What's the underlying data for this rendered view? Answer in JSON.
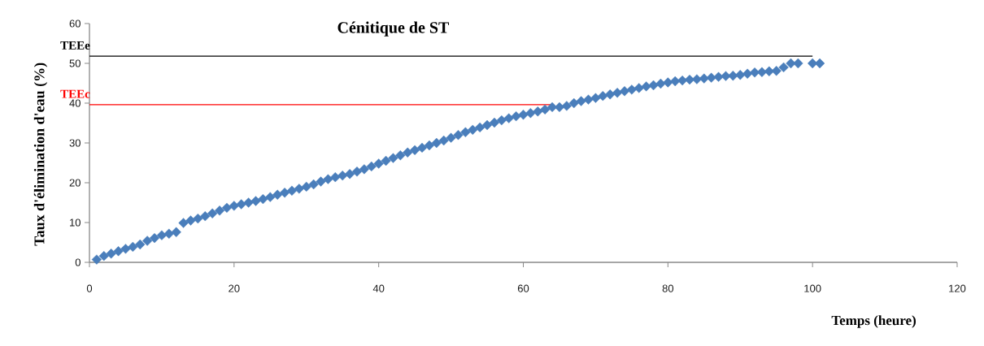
{
  "chart_data": {
    "type": "scatter",
    "title": "Cénitique de ST",
    "xlabel": "Temps (heure)",
    "ylabel": "Taux d'élimination d'eau (%)",
    "xlim": [
      0,
      120
    ],
    "xticks": [
      0,
      20,
      40,
      60,
      80,
      100,
      120
    ],
    "ylim": [
      0,
      60
    ],
    "yticks": [
      0,
      10,
      20,
      30,
      40,
      50,
      60
    ],
    "grid": false,
    "legend": false,
    "marker": "diamond",
    "series": [
      {
        "color": "#4a7ebb",
        "x": [
          1,
          2,
          3,
          4,
          5,
          6,
          7,
          8,
          9,
          10,
          11,
          12,
          13,
          14,
          15,
          16,
          17,
          18,
          19,
          20,
          21,
          22,
          23,
          24,
          25,
          26,
          27,
          28,
          29,
          30,
          31,
          32,
          33,
          34,
          35,
          36,
          37,
          38,
          39,
          40,
          41,
          42,
          43,
          44,
          45,
          46,
          47,
          48,
          49,
          50,
          51,
          52,
          53,
          54,
          55,
          56,
          57,
          58,
          59,
          60,
          61,
          62,
          63,
          64,
          65,
          66,
          67,
          68,
          69,
          70,
          71,
          72,
          73,
          74,
          75,
          76,
          77,
          78,
          79,
          80,
          81,
          82,
          83,
          84,
          85,
          86,
          87,
          88,
          89,
          90,
          91,
          92,
          93,
          94,
          95,
          96,
          97,
          98,
          100,
          101
        ],
        "values": [
          0.7,
          1.6,
          2.2,
          2.8,
          3.4,
          3.9,
          4.5,
          5.4,
          6.1,
          6.8,
          7.2,
          7.6,
          9.9,
          10.5,
          11.0,
          11.6,
          12.3,
          13.0,
          13.7,
          14.2,
          14.6,
          15.0,
          15.4,
          15.9,
          16.4,
          17.0,
          17.5,
          18.0,
          18.5,
          19.0,
          19.6,
          20.3,
          20.9,
          21.4,
          21.8,
          22.2,
          22.8,
          23.4,
          24.1,
          24.8,
          25.5,
          26.2,
          26.9,
          27.6,
          28.2,
          28.8,
          29.4,
          30.0,
          30.6,
          31.3,
          32.0,
          32.7,
          33.3,
          33.9,
          34.5,
          35.1,
          35.7,
          36.2,
          36.7,
          37.1,
          37.5,
          37.9,
          38.4,
          39.0,
          39.0,
          39.3,
          40.0,
          40.5,
          40.9,
          41.3,
          41.8,
          42.2,
          42.6,
          43.0,
          43.4,
          43.8,
          44.2,
          44.5,
          44.9,
          45.2,
          45.5,
          45.7,
          45.9,
          46.0,
          46.2,
          46.4,
          46.6,
          46.8,
          46.9,
          47.1,
          47.4,
          47.7,
          47.8,
          48.0,
          48.1,
          49.0,
          50.0,
          50.0,
          50.0,
          50.0
        ]
      },
      {
        "type": "line",
        "name": "TEEe",
        "color": "#000000",
        "marker": "none",
        "line_style": "solid",
        "x": [
          0,
          100
        ],
        "values": [
          51.8,
          51.8
        ]
      },
      {
        "type": "line",
        "name": "TEEc",
        "color": "#ff0000",
        "marker": "none",
        "line_style": "solid",
        "x": [
          0,
          64
        ],
        "values": [
          39.6,
          39.6
        ]
      }
    ]
  }
}
